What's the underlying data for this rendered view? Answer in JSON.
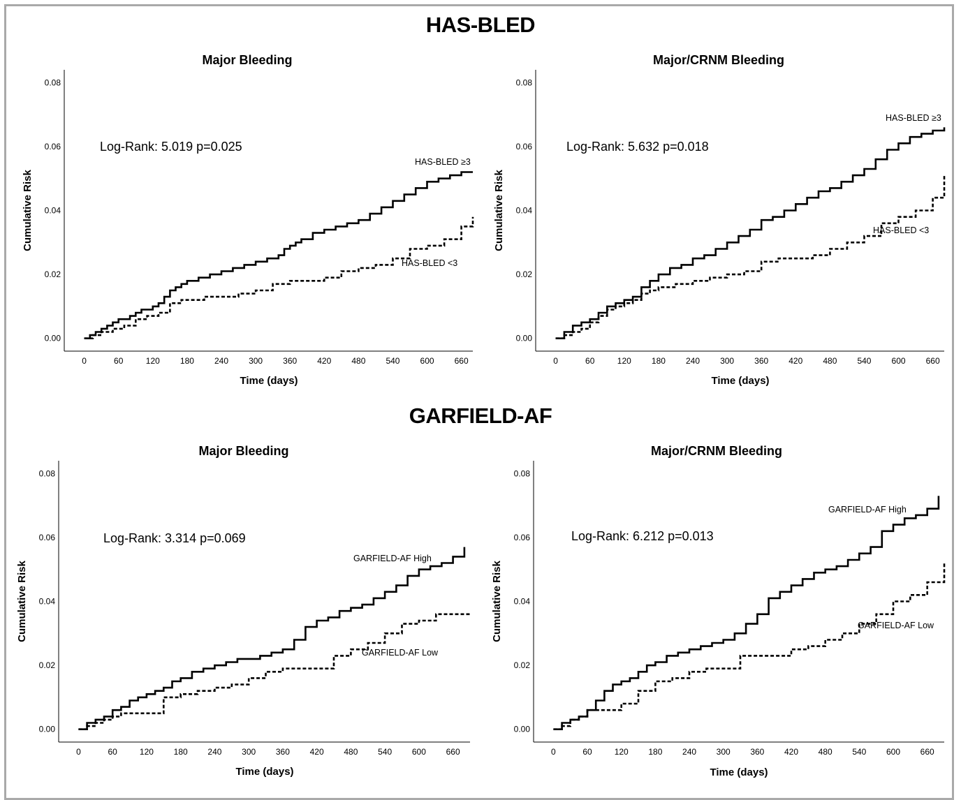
{
  "sections": [
    {
      "title": "HAS-BLED"
    },
    {
      "title": "GARFIELD-AF"
    }
  ],
  "chart_data": [
    {
      "type": "line",
      "title": "Major Bleeding",
      "xlabel": "Time (days)",
      "ylabel": "Cumulative Risk",
      "xticks": [
        0,
        60,
        120,
        180,
        240,
        300,
        360,
        420,
        480,
        540,
        600,
        660
      ],
      "yticks": [
        "0.00",
        "0.02",
        "0.04",
        "0.06",
        "0.08"
      ],
      "xlim": [
        -35,
        680
      ],
      "ylim": [
        -0.004,
        0.084
      ],
      "annotation": "Log-Rank: 5.019 p=0.025",
      "series": [
        {
          "name": "HAS-BLED ≥3",
          "style": "solid",
          "x": [
            0,
            10,
            20,
            30,
            40,
            50,
            60,
            70,
            80,
            90,
            100,
            110,
            120,
            130,
            140,
            150,
            160,
            170,
            180,
            200,
            220,
            240,
            260,
            280,
            300,
            320,
            340,
            350,
            360,
            370,
            380,
            400,
            420,
            440,
            460,
            480,
            500,
            520,
            540,
            560,
            580,
            600,
            620,
            640,
            660,
            680
          ],
          "y": [
            0.0,
            0.001,
            0.002,
            0.003,
            0.004,
            0.005,
            0.006,
            0.006,
            0.007,
            0.008,
            0.009,
            0.009,
            0.01,
            0.011,
            0.013,
            0.015,
            0.016,
            0.017,
            0.018,
            0.019,
            0.02,
            0.021,
            0.022,
            0.023,
            0.024,
            0.025,
            0.026,
            0.028,
            0.029,
            0.03,
            0.031,
            0.033,
            0.034,
            0.035,
            0.036,
            0.037,
            0.039,
            0.041,
            0.043,
            0.045,
            0.047,
            0.049,
            0.05,
            0.051,
            0.052,
            0.052
          ]
        },
        {
          "name": "HAS-BLED <3",
          "style": "dashed",
          "x": [
            0,
            15,
            30,
            50,
            70,
            90,
            110,
            130,
            150,
            170,
            190,
            210,
            240,
            270,
            300,
            330,
            360,
            390,
            420,
            450,
            480,
            510,
            540,
            570,
            600,
            630,
            660,
            680
          ],
          "y": [
            0.0,
            0.001,
            0.002,
            0.003,
            0.004,
            0.006,
            0.007,
            0.008,
            0.011,
            0.012,
            0.012,
            0.013,
            0.013,
            0.014,
            0.015,
            0.017,
            0.018,
            0.018,
            0.019,
            0.021,
            0.022,
            0.023,
            0.025,
            0.028,
            0.029,
            0.031,
            0.035,
            0.038
          ]
        }
      ],
      "labels": [
        "HAS-BLED ≥3",
        "HAS-BLED <3"
      ]
    },
    {
      "type": "line",
      "title": "Major/CRNM Bleeding",
      "xlabel": "Time (days)",
      "ylabel": "Cumulative Risk",
      "xticks": [
        0,
        60,
        120,
        180,
        240,
        300,
        360,
        420,
        480,
        540,
        600,
        660
      ],
      "yticks": [
        "0.00",
        "0.02",
        "0.04",
        "0.06",
        "0.08"
      ],
      "xlim": [
        -35,
        680
      ],
      "ylim": [
        -0.004,
        0.084
      ],
      "annotation": "Log-Rank: 5.632 p=0.018",
      "series": [
        {
          "name": "HAS-BLED ≥3",
          "style": "solid",
          "x": [
            0,
            15,
            30,
            45,
            60,
            75,
            90,
            105,
            120,
            135,
            150,
            165,
            180,
            200,
            220,
            240,
            260,
            280,
            300,
            320,
            340,
            360,
            380,
            400,
            420,
            440,
            460,
            480,
            500,
            520,
            540,
            560,
            580,
            600,
            620,
            640,
            660,
            680
          ],
          "y": [
            0.0,
            0.002,
            0.004,
            0.005,
            0.006,
            0.008,
            0.01,
            0.011,
            0.012,
            0.013,
            0.016,
            0.018,
            0.02,
            0.022,
            0.023,
            0.025,
            0.026,
            0.028,
            0.03,
            0.032,
            0.034,
            0.037,
            0.038,
            0.04,
            0.042,
            0.044,
            0.046,
            0.047,
            0.049,
            0.051,
            0.053,
            0.056,
            0.059,
            0.061,
            0.063,
            0.064,
            0.065,
            0.066
          ]
        },
        {
          "name": "HAS-BLED <3",
          "style": "dashed",
          "x": [
            0,
            15,
            30,
            45,
            60,
            75,
            90,
            105,
            120,
            135,
            150,
            165,
            180,
            210,
            240,
            270,
            300,
            330,
            360,
            390,
            420,
            450,
            480,
            510,
            540,
            570,
            600,
            630,
            660,
            680
          ],
          "y": [
            0.0,
            0.001,
            0.002,
            0.003,
            0.005,
            0.007,
            0.009,
            0.01,
            0.011,
            0.012,
            0.014,
            0.015,
            0.016,
            0.017,
            0.018,
            0.019,
            0.02,
            0.021,
            0.024,
            0.025,
            0.025,
            0.026,
            0.028,
            0.03,
            0.032,
            0.036,
            0.038,
            0.04,
            0.044,
            0.051
          ]
        }
      ],
      "labels": [
        "HAS-BLED ≥3",
        "HAS-BLED <3"
      ]
    },
    {
      "type": "line",
      "title": "Major Bleeding",
      "xlabel": "Time (days)",
      "ylabel": "Cumulative Risk",
      "xticks": [
        0,
        60,
        120,
        180,
        240,
        300,
        360,
        420,
        480,
        540,
        600,
        660
      ],
      "yticks": [
        "0.00",
        "0.02",
        "0.04",
        "0.06",
        "0.08"
      ],
      "xlim": [
        -35,
        690
      ],
      "ylim": [
        -0.004,
        0.084
      ],
      "annotation": "Log-Rank: 3.314 p=0.069",
      "series": [
        {
          "name": "GARFIELD-AF High",
          "style": "solid",
          "x": [
            0,
            15,
            30,
            45,
            60,
            75,
            90,
            105,
            120,
            135,
            150,
            165,
            180,
            200,
            220,
            240,
            260,
            280,
            300,
            320,
            340,
            360,
            380,
            400,
            420,
            440,
            460,
            480,
            500,
            520,
            540,
            560,
            580,
            600,
            620,
            640,
            660,
            680
          ],
          "y": [
            0.0,
            0.002,
            0.003,
            0.004,
            0.006,
            0.007,
            0.009,
            0.01,
            0.011,
            0.012,
            0.013,
            0.015,
            0.016,
            0.018,
            0.019,
            0.02,
            0.021,
            0.022,
            0.022,
            0.023,
            0.024,
            0.025,
            0.028,
            0.032,
            0.034,
            0.035,
            0.037,
            0.038,
            0.039,
            0.041,
            0.043,
            0.045,
            0.048,
            0.05,
            0.051,
            0.052,
            0.054,
            0.057
          ]
        },
        {
          "name": "GARFIELD-AF Low",
          "style": "dashed",
          "x": [
            0,
            15,
            30,
            45,
            60,
            75,
            90,
            120,
            150,
            180,
            210,
            240,
            270,
            300,
            330,
            360,
            390,
            420,
            450,
            480,
            510,
            540,
            570,
            600,
            630,
            660,
            690
          ],
          "y": [
            0.0,
            0.001,
            0.002,
            0.003,
            0.004,
            0.005,
            0.005,
            0.005,
            0.01,
            0.011,
            0.012,
            0.013,
            0.014,
            0.016,
            0.018,
            0.019,
            0.019,
            0.019,
            0.023,
            0.025,
            0.027,
            0.03,
            0.033,
            0.034,
            0.036,
            0.036,
            0.036
          ]
        }
      ],
      "labels": [
        "GARFIELD-AF High",
        "GARFIELD-AF Low"
      ]
    },
    {
      "type": "line",
      "title": "Major/CRNM Bleeding",
      "xlabel": "Time (days)",
      "ylabel": "Cumulative Risk",
      "xticks": [
        0,
        60,
        120,
        180,
        240,
        300,
        360,
        420,
        480,
        540,
        600,
        660
      ],
      "yticks": [
        "0.00",
        "0.02",
        "0.04",
        "0.06",
        "0.08"
      ],
      "xlim": [
        -35,
        690
      ],
      "ylim": [
        -0.004,
        0.084
      ],
      "annotation": "Log-Rank: 6.212 p=0.013",
      "series": [
        {
          "name": "GARFIELD-AF High",
          "style": "solid",
          "x": [
            0,
            15,
            30,
            45,
            60,
            75,
            90,
            105,
            120,
            135,
            150,
            165,
            180,
            200,
            220,
            240,
            260,
            280,
            300,
            320,
            340,
            360,
            380,
            400,
            420,
            440,
            460,
            480,
            500,
            520,
            540,
            560,
            580,
            600,
            620,
            640,
            660,
            680
          ],
          "y": [
            0.0,
            0.002,
            0.003,
            0.004,
            0.006,
            0.009,
            0.012,
            0.014,
            0.015,
            0.016,
            0.018,
            0.02,
            0.021,
            0.023,
            0.024,
            0.025,
            0.026,
            0.027,
            0.028,
            0.03,
            0.033,
            0.036,
            0.041,
            0.043,
            0.045,
            0.047,
            0.049,
            0.05,
            0.051,
            0.053,
            0.055,
            0.057,
            0.062,
            0.064,
            0.066,
            0.067,
            0.069,
            0.073
          ]
        },
        {
          "name": "GARFIELD-AF Low",
          "style": "dashed",
          "x": [
            0,
            15,
            30,
            45,
            60,
            75,
            90,
            120,
            150,
            180,
            210,
            240,
            270,
            300,
            330,
            360,
            390,
            420,
            450,
            480,
            510,
            540,
            570,
            600,
            630,
            660,
            690
          ],
          "y": [
            0.0,
            0.001,
            0.003,
            0.004,
            0.006,
            0.006,
            0.006,
            0.008,
            0.012,
            0.015,
            0.016,
            0.018,
            0.019,
            0.019,
            0.023,
            0.023,
            0.023,
            0.025,
            0.026,
            0.028,
            0.03,
            0.033,
            0.036,
            0.04,
            0.042,
            0.046,
            0.052
          ]
        }
      ],
      "labels": [
        "GARFIELD-AF High",
        "GARFIELD-AF Low"
      ]
    }
  ]
}
